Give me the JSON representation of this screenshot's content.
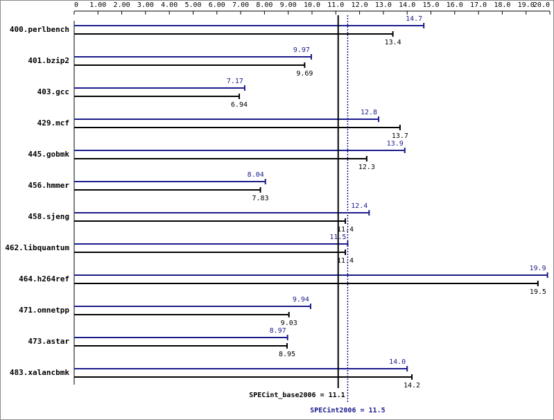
{
  "chart_data": {
    "type": "bar",
    "orientation": "horizontal",
    "categories": [
      "400.perlbench",
      "401.bzip2",
      "403.gcc",
      "429.mcf",
      "445.gobmk",
      "456.hmmer",
      "458.sjeng",
      "462.libquantum",
      "464.h264ref",
      "471.omnetpp",
      "473.astar",
      "483.xalancbmk"
    ],
    "series": [
      {
        "color": "#1a1a8c",
        "values": [
          14.7,
          9.97,
          7.17,
          12.8,
          13.9,
          8.04,
          12.4,
          11.5,
          19.9,
          9.94,
          8.97,
          14.0
        ],
        "value_labels": [
          "14.7",
          "9.97",
          "7.17",
          "12.8",
          "13.9",
          "8.04",
          "12.4",
          "11.5",
          "19.9",
          "9.94",
          "8.97",
          "14.0"
        ]
      },
      {
        "color": "#000000",
        "values": [
          13.4,
          9.69,
          6.94,
          13.7,
          12.3,
          7.83,
          11.4,
          11.4,
          19.5,
          9.03,
          8.95,
          14.2
        ]
      }
    ],
    "xlim": [
      0,
      20
    ],
    "xticks": [
      0,
      {
        "value": 1,
        "label": "1.00"
      },
      {
        "value": 2,
        "label": "2.00"
      },
      {
        "value": 3,
        "label": "3.00"
      },
      {
        "value": 4,
        "label": "4.00"
      },
      {
        "value": 5,
        "label": "5.00"
      },
      {
        "value": 6,
        "label": "6.00"
      },
      {
        "value": 7,
        "label": "7.00"
      },
      {
        "value": 8,
        "label": "8.00"
      },
      {
        "value": 9,
        "label": "9.00"
      },
      {
        "value": 10,
        "label": "10.0"
      },
      {
        "value": 11,
        "label": "11.0"
      },
      {
        "value": 12,
        "label": "12.0"
      },
      {
        "value": 13,
        "label": "13.0"
      },
      {
        "value": 14,
        "label": "14.0"
      },
      {
        "value": 15,
        "label": "15.0"
      },
      {
        "value": 16,
        "label": "16.0"
      },
      {
        "value": 17,
        "label": "17.0"
      },
      {
        "value": 18,
        "label": "18.0"
      },
      {
        "value": 19,
        "label": "19.0"
      },
      {
        "value": 20,
        "label": "20.0"
      }
    ],
    "reference_lines": [
      {
        "value": 11.1,
        "label": "SPECint_base2006 = 11.1",
        "color": "#000000",
        "style": "solid"
      },
      {
        "value": 11.5,
        "label": "SPECint2006 = 11.5",
        "color": "#1a1a8c",
        "style": "dotted"
      }
    ]
  }
}
